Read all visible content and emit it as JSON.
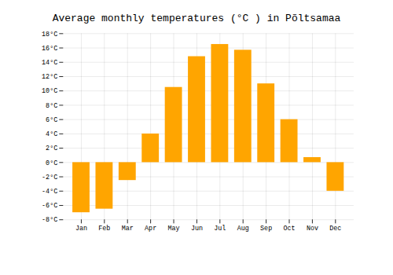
{
  "chart_data": {
    "type": "bar",
    "title": "Average monthly temperatures (°C ) in Põltsamaa",
    "categories": [
      "Jan",
      "Feb",
      "Mar",
      "Apr",
      "May",
      "Jun",
      "Jul",
      "Aug",
      "Sep",
      "Oct",
      "Nov",
      "Dec"
    ],
    "values": [
      -7.0,
      -6.5,
      -2.5,
      4.0,
      10.5,
      14.8,
      16.5,
      15.7,
      11.0,
      6.0,
      0.7,
      -4.0
    ],
    "color": "#FFA500",
    "ylim": [
      -8,
      18
    ],
    "yticks": [
      {
        "value": -8,
        "label": "-8°C"
      },
      {
        "value": -6,
        "label": "-6°C"
      },
      {
        "value": -4,
        "label": "-4°C"
      },
      {
        "value": -2,
        "label": "-2°C"
      },
      {
        "value": 0,
        "label": "0°C"
      },
      {
        "value": 2,
        "label": "2°C"
      },
      {
        "value": 4,
        "label": "4°C"
      },
      {
        "value": 6,
        "label": "6°C"
      },
      {
        "value": 8,
        "label": "8°C"
      },
      {
        "value": 10,
        "label": "10°C"
      },
      {
        "value": 12,
        "label": "12°C"
      },
      {
        "value": 14,
        "label": "14°C"
      },
      {
        "value": 16,
        "label": "16°C"
      },
      {
        "value": 18,
        "label": "18°C"
      }
    ],
    "grid": true
  }
}
